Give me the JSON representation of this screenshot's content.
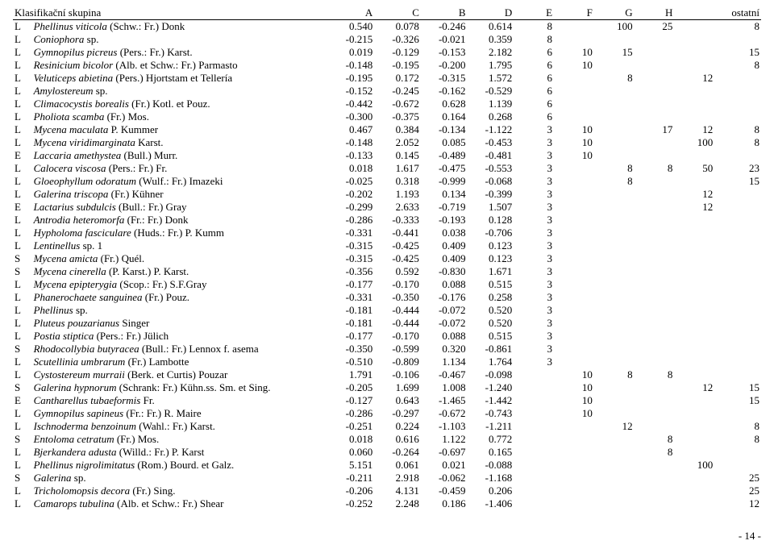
{
  "header": {
    "group_label": "Klasifikační skupina",
    "cols": [
      "A",
      "C",
      "B",
      "D",
      "E",
      "F",
      "G",
      "H",
      "ostatní"
    ]
  },
  "footer": "- 14 -",
  "rows": [
    {
      "c": "L",
      "name_i": "Phellinus viticola",
      "name_r": " (Schw.: Fr.) Donk",
      "n": [
        "0.540",
        "0.078",
        "-0.246",
        "0.614"
      ],
      "v": [
        "8",
        "",
        "100",
        "25",
        "",
        "8"
      ]
    },
    {
      "c": "L",
      "name_i": "Coniophora",
      "name_r": " sp.",
      "n": [
        "-0.215",
        "-0.326",
        "-0.021",
        "0.359"
      ],
      "v": [
        "8",
        "",
        "",
        "",
        "",
        ""
      ]
    },
    {
      "c": "L",
      "name_i": "Gymnopilus picreus",
      "name_r": " (Pers.: Fr.) Karst.",
      "n": [
        "0.019",
        "-0.129",
        "-0.153",
        "2.182"
      ],
      "v": [
        "6",
        "10",
        "15",
        "",
        "",
        "15"
      ]
    },
    {
      "c": "L",
      "name_i": "Resinicium bicolor",
      "name_r": " (Alb. et Schw.: Fr.) Parmasto",
      "n": [
        "-0.148",
        "-0.195",
        "-0.200",
        "1.795"
      ],
      "v": [
        "6",
        "10",
        "",
        "",
        "",
        "8"
      ]
    },
    {
      "c": "L",
      "name_i": "Veluticeps abietina",
      "name_r": " (Pers.) Hjortstam et Tellería",
      "n": [
        "-0.195",
        "0.172",
        "-0.315",
        "1.572"
      ],
      "v": [
        "6",
        "",
        "8",
        "",
        "12",
        ""
      ]
    },
    {
      "c": "L",
      "name_i": "Amylostereum",
      "name_r": " sp.",
      "n": [
        "-0.152",
        "-0.245",
        "-0.162",
        "-0.529"
      ],
      "v": [
        "6",
        "",
        "",
        "",
        "",
        ""
      ]
    },
    {
      "c": "L",
      "name_i": "Climacocystis borealis",
      "name_r": " (Fr.) Kotl. et Pouz.",
      "n": [
        "-0.442",
        "-0.672",
        "0.628",
        "1.139"
      ],
      "v": [
        "6",
        "",
        "",
        "",
        "",
        ""
      ]
    },
    {
      "c": "L",
      "name_i": "Pholiota scamba",
      "name_r": " (Fr.) Mos.",
      "n": [
        "-0.300",
        "-0.375",
        "0.164",
        "0.268"
      ],
      "v": [
        "6",
        "",
        "",
        "",
        "",
        ""
      ]
    },
    {
      "c": "L",
      "name_i": "Mycena maculata",
      "name_r": " P. Kummer",
      "n": [
        "0.467",
        "0.384",
        "-0.134",
        "-1.122"
      ],
      "v": [
        "3",
        "10",
        "",
        "17",
        "12",
        "8"
      ]
    },
    {
      "c": "L",
      "name_i": "Mycena viridimarginata",
      "name_r": " Karst.",
      "n": [
        "-0.148",
        "2.052",
        "0.085",
        "-0.453"
      ],
      "v": [
        "3",
        "10",
        "",
        "",
        "100",
        "8"
      ]
    },
    {
      "c": "E",
      "name_i": "Laccaria amethystea",
      "name_r": " (Bull.) Murr.",
      "n": [
        "-0.133",
        "0.145",
        "-0.489",
        "-0.481"
      ],
      "v": [
        "3",
        "10",
        "",
        "",
        "",
        ""
      ]
    },
    {
      "c": "L",
      "name_i": "Calocera viscosa",
      "name_r": " (Pers.: Fr.) Fr.",
      "n": [
        "0.018",
        "1.617",
        "-0.475",
        "-0.553"
      ],
      "v": [
        "3",
        "",
        "8",
        "8",
        "50",
        "23"
      ]
    },
    {
      "c": "L",
      "name_i": "Gloeophyllum odoratum",
      "name_r": " (Wulf.: Fr.) Imazeki",
      "n": [
        "-0.025",
        "0.318",
        "-0.999",
        "-0.068"
      ],
      "v": [
        "3",
        "",
        "8",
        "",
        "",
        "15"
      ]
    },
    {
      "c": "L",
      "name_i": "Galerina triscopa",
      "name_r": " (Fr.) Kühner",
      "n": [
        "-0.202",
        "1.193",
        "0.134",
        "-0.399"
      ],
      "v": [
        "3",
        "",
        "",
        "",
        "12",
        ""
      ]
    },
    {
      "c": "E",
      "name_i": "Lactarius subdulcis",
      "name_r": " (Bull.: Fr.) Gray",
      "n": [
        "-0.299",
        "2.633",
        "-0.719",
        "1.507"
      ],
      "v": [
        "3",
        "",
        "",
        "",
        "12",
        ""
      ]
    },
    {
      "c": "L",
      "name_i": "Antrodia heteromorfa",
      "name_r": " (Fr.: Fr.) Donk",
      "n": [
        "-0.286",
        "-0.333",
        "-0.193",
        "0.128"
      ],
      "v": [
        "3",
        "",
        "",
        "",
        "",
        ""
      ]
    },
    {
      "c": "L",
      "name_i": "Hypholoma fasciculare",
      "name_r": " (Huds.: Fr.) P. Kumm",
      "n": [
        "-0.331",
        "-0.441",
        "0.038",
        "-0.706"
      ],
      "v": [
        "3",
        "",
        "",
        "",
        "",
        ""
      ]
    },
    {
      "c": "L",
      "name_i": "Lentinellus",
      "name_r": " sp. 1",
      "n": [
        "-0.315",
        "-0.425",
        "0.409",
        "0.123"
      ],
      "v": [
        "3",
        "",
        "",
        "",
        "",
        ""
      ]
    },
    {
      "c": "S",
      "name_i": "Mycena amicta",
      "name_r": " (Fr.) Quél.",
      "n": [
        "-0.315",
        "-0.425",
        "0.409",
        "0.123"
      ],
      "v": [
        "3",
        "",
        "",
        "",
        "",
        ""
      ]
    },
    {
      "c": "S",
      "name_i": "Mycena cinerella",
      "name_r": " (P. Karst.) P. Karst.",
      "n": [
        "-0.356",
        "0.592",
        "-0.830",
        "1.671"
      ],
      "v": [
        "3",
        "",
        "",
        "",
        "",
        ""
      ]
    },
    {
      "c": "L",
      "name_i": "Mycena epipterygia",
      "name_r": " (Scop.: Fr.) S.F.Gray",
      "n": [
        "-0.177",
        "-0.170",
        "0.088",
        "0.515"
      ],
      "v": [
        "3",
        "",
        "",
        "",
        "",
        ""
      ]
    },
    {
      "c": "L",
      "name_i": "Phanerochaete sanguinea",
      "name_r": " (Fr.) Pouz.",
      "n": [
        "-0.331",
        "-0.350",
        "-0.176",
        "0.258"
      ],
      "v": [
        "3",
        "",
        "",
        "",
        "",
        ""
      ]
    },
    {
      "c": "L",
      "name_i": "Phellinus",
      "name_r": " sp.",
      "n": [
        "-0.181",
        "-0.444",
        "-0.072",
        "0.520"
      ],
      "v": [
        "3",
        "",
        "",
        "",
        "",
        ""
      ]
    },
    {
      "c": "L",
      "name_i": "Pluteus pouzarianus",
      "name_r": " Singer",
      "n": [
        "-0.181",
        "-0.444",
        "-0.072",
        "0.520"
      ],
      "v": [
        "3",
        "",
        "",
        "",
        "",
        ""
      ]
    },
    {
      "c": "L",
      "name_i": "Postia stiptica",
      "name_r": " (Pers.: Fr.) Jülich",
      "n": [
        "-0.177",
        "-0.170",
        "0.088",
        "0.515"
      ],
      "v": [
        "3",
        "",
        "",
        "",
        "",
        ""
      ]
    },
    {
      "c": "S",
      "name_i": "Rhodocollybia butyracea",
      "name_r": " (Bull.: Fr.) Lennox f. asema",
      "n": [
        "-0.350",
        "-0.599",
        "0.320",
        "-0.861"
      ],
      "v": [
        "3",
        "",
        "",
        "",
        "",
        ""
      ]
    },
    {
      "c": "L",
      "name_i": "Scutellinia umbrarum",
      "name_r": " (Fr.) Lambotte",
      "n": [
        "-0.510",
        "-0.809",
        "1.134",
        "1.764"
      ],
      "v": [
        "3",
        "",
        "",
        "",
        "",
        ""
      ]
    },
    {
      "c": "L",
      "name_i": "Cystostereum murraii",
      "name_r": " (Berk. et Curtis) Pouzar",
      "n": [
        "1.791",
        "-0.106",
        "-0.467",
        "-0.098"
      ],
      "v": [
        "",
        "10",
        "8",
        "8",
        "",
        ""
      ]
    },
    {
      "c": "S",
      "name_i": "Galerina hypnorum",
      "name_r": " (Schrank: Fr.) Kühn.ss. Sm. et Sing.",
      "n": [
        "-0.205",
        "1.699",
        "1.008",
        "-1.240"
      ],
      "v": [
        "",
        "10",
        "",
        "",
        "12",
        "15"
      ]
    },
    {
      "c": "E",
      "name_i": "Cantharellus tubaeformis",
      "name_r": " Fr.",
      "n": [
        "-0.127",
        "0.643",
        "-1.465",
        "-1.442"
      ],
      "v": [
        "",
        "10",
        "",
        "",
        "",
        "15"
      ]
    },
    {
      "c": "L",
      "name_i": "Gymnopilus sapineus",
      "name_r": " (Fr.: Fr.) R. Maire",
      "n": [
        "-0.286",
        "-0.297",
        "-0.672",
        "-0.743"
      ],
      "v": [
        "",
        "10",
        "",
        "",
        "",
        ""
      ]
    },
    {
      "c": "L",
      "name_i": "Ischnoderma benzoinum",
      "name_r": " (Wahl.: Fr.) Karst.",
      "n": [
        "-0.251",
        "0.224",
        "-1.103",
        "-1.211"
      ],
      "v": [
        "",
        "",
        "12",
        "",
        "",
        "8"
      ]
    },
    {
      "c": "S",
      "name_i": "Entoloma cetratum",
      "name_r": " (Fr.) Mos.",
      "n": [
        "0.018",
        "0.616",
        "1.122",
        "0.772"
      ],
      "v": [
        "",
        "",
        "",
        "8",
        "",
        "8"
      ]
    },
    {
      "c": "L",
      "name_i": "Bjerkandera adusta",
      "name_r": " (Willd.: Fr.) P. Karst",
      "n": [
        "0.060",
        "-0.264",
        "-0.697",
        "0.165"
      ],
      "v": [
        "",
        "",
        "",
        "8",
        "",
        ""
      ]
    },
    {
      "c": "L",
      "name_i": "Phellinus nigrolimitatus",
      "name_r": " (Rom.) Bourd. et Galz.",
      "n": [
        "5.151",
        "0.061",
        "0.021",
        "-0.088"
      ],
      "v": [
        "",
        "",
        "",
        "",
        "100",
        ""
      ]
    },
    {
      "c": "S",
      "name_i": "Galerina",
      "name_r": " sp.",
      "n": [
        "-0.211",
        "2.918",
        "-0.062",
        "-1.168"
      ],
      "v": [
        "",
        "",
        "",
        "",
        "",
        "25"
      ]
    },
    {
      "c": "L",
      "name_i": "Tricholomopsis decora",
      "name_r": " (Fr.) Sing.",
      "n": [
        "-0.206",
        "4.131",
        "-0.459",
        "0.206"
      ],
      "v": [
        "",
        "",
        "",
        "",
        "",
        "25"
      ]
    },
    {
      "c": "L",
      "name_i": "Camarops tubulina",
      "name_r": " (Alb. et Schw.: Fr.) Shear",
      "n": [
        "-0.252",
        "2.248",
        "0.186",
        "-1.406"
      ],
      "v": [
        "",
        "",
        "",
        "",
        "",
        "12"
      ]
    }
  ]
}
